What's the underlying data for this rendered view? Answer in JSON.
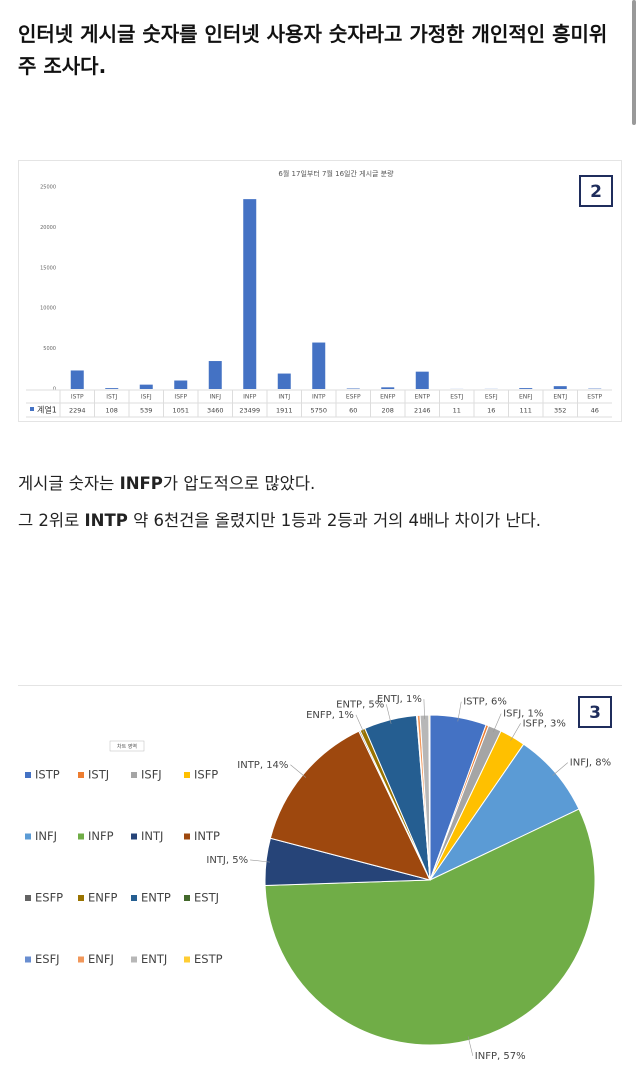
{
  "header": {
    "title": "인터넷 게시글 숫자를 인터넷 사용자 숫자라고 가정한 개인적인 흥미위주 조사다."
  },
  "paragraphs": [
    [
      "게시글 숫자는 ",
      "INFP",
      "가 압도적으로 많았다."
    ],
    [
      "그 2위로 ",
      "INTP",
      " 약 6천건을 올렸지만 1등과 2등과 거의 4배나 차이가 난다."
    ]
  ],
  "chart_data": [
    {
      "type": "bar",
      "title": "6월 17일부터 7월 16일간 게시글 분량",
      "badge": "2",
      "categories": [
        "ISTP",
        "ISTJ",
        "ISFJ",
        "ISFP",
        "INFJ",
        "INFP",
        "INTJ",
        "INTP",
        "ESFP",
        "ENFP",
        "ENTP",
        "ESTJ",
        "ESFJ",
        "ENFJ",
        "ENTJ",
        "ESTP"
      ],
      "series": [
        {
          "name": "계열1",
          "color": "#4472c4",
          "values": [
            2294,
            108,
            539,
            1051,
            3460,
            23499,
            1911,
            5750,
            60,
            208,
            2146,
            11,
            16,
            111,
            352,
            46
          ]
        }
      ],
      "ylim": [
        0,
        25000
      ],
      "yticks": [
        0,
        5000,
        10000,
        15000,
        20000,
        25000
      ],
      "grid": false
    },
    {
      "type": "pie",
      "badge": "3",
      "tooltip": "차트 영역",
      "legend": "left",
      "categories": [
        "ISTP",
        "ISTJ",
        "ISFJ",
        "ISFP",
        "INFJ",
        "INFP",
        "INTJ",
        "INTP",
        "ESFP",
        "ENFP",
        "ENTP",
        "ESTJ",
        "ESFJ",
        "ENFJ",
        "ENTJ",
        "ESTP"
      ],
      "values": [
        5.52,
        0.26,
        1.3,
        2.53,
        8.32,
        56.54,
        4.6,
        13.83,
        0.14,
        0.5,
        5.16,
        0.03,
        0.04,
        0.27,
        0.85,
        0.11
      ],
      "value_labels": [
        "ISTP, 6%",
        null,
        "ISFJ, 1%",
        "ISFP, 3%",
        "INFJ, 8%",
        "INFP, 57%",
        "INTJ, 5%",
        "INTP, 14%",
        null,
        "ENFP, 1%",
        "ENTP, 5%",
        null,
        null,
        null,
        "ENTJ, 1%",
        null
      ],
      "colors": [
        "#4472c4",
        "#ed7d31",
        "#a5a5a5",
        "#ffc000",
        "#5b9bd5",
        "#70ad47",
        "#264478",
        "#9e480e",
        "#636363",
        "#997300",
        "#255e91",
        "#43682b",
        "#698ed0",
        "#f1975a",
        "#b7b7b7",
        "#ffcd33"
      ]
    }
  ]
}
